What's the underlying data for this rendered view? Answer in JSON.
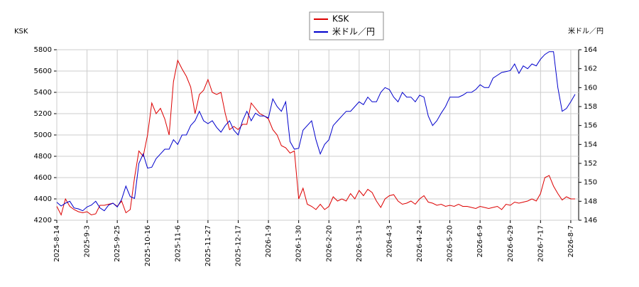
{
  "chart_data": {
    "type": "line",
    "y_label": "KSK",
    "y2_label": "米ドル／円",
    "categories": [
      "2025-8-14",
      null,
      null,
      null,
      null,
      null,
      null,
      "2025-9-3",
      null,
      null,
      null,
      null,
      null,
      null,
      "2025-9-25",
      null,
      null,
      null,
      null,
      null,
      null,
      "2025-10-16",
      null,
      null,
      null,
      null,
      null,
      null,
      "2025-11-6",
      null,
      null,
      null,
      null,
      null,
      null,
      "2025-11-27",
      null,
      null,
      null,
      null,
      null,
      null,
      "2025-12-17",
      null,
      null,
      null,
      null,
      null,
      null,
      "2026-1-9",
      null,
      null,
      null,
      null,
      null,
      null,
      "2026-1-30",
      null,
      null,
      null,
      null,
      null,
      null,
      "2026-2-20",
      null,
      null,
      null,
      null,
      null,
      null,
      "2026-3-13",
      null,
      null,
      null,
      null,
      null,
      null,
      "2026-4-3",
      null,
      null,
      null,
      null,
      null,
      null,
      "2026-4-24",
      null,
      null,
      null,
      null,
      null,
      null,
      "2026-5-20",
      null,
      null,
      null,
      null,
      null,
      null,
      "2026-6-9",
      null,
      null,
      null,
      null,
      null,
      null,
      "2026-6-29",
      null,
      null,
      null,
      null,
      null,
      null,
      "2026-7-17",
      null,
      null,
      null,
      null,
      null,
      null,
      "2026-8-7",
      null
    ],
    "series": [
      {
        "name": "KSK",
        "color": "#dd0000",
        "values": [
          4330,
          4250,
          4400,
          4330,
          4300,
          4280,
          4270,
          4280,
          4250,
          4260,
          4340,
          4340,
          4350,
          4360,
          4330,
          4380,
          4270,
          4300,
          4600,
          4850,
          4800,
          5000,
          5300,
          5200,
          5250,
          5150,
          5000,
          5500,
          5700,
          5620,
          5550,
          5450,
          5200,
          5380,
          5420,
          5520,
          5400,
          5380,
          5400,
          5200,
          5050,
          5080,
          5050,
          5100,
          5100,
          5300,
          5250,
          5200,
          5180,
          5150,
          5050,
          5000,
          4900,
          4880,
          4830,
          4850,
          4400,
          4500,
          4350,
          4330,
          4300,
          4350,
          4300,
          4330,
          4420,
          4380,
          4400,
          4380,
          4450,
          4400,
          4480,
          4430,
          4490,
          4460,
          4380,
          4320,
          4400,
          4430,
          4440,
          4380,
          4350,
          4360,
          4380,
          4350,
          4400,
          4430,
          4370,
          4360,
          4340,
          4350,
          4330,
          4340,
          4330,
          4350,
          4330,
          4330,
          4320,
          4310,
          4330,
          4320,
          4310,
          4320,
          4330,
          4300,
          4350,
          4340,
          4370,
          4360,
          4370,
          4380,
          4400,
          4380,
          4450,
          4600,
          4620,
          4520,
          4450,
          4390,
          4420,
          4400,
          4400
        ]
      },
      {
        "name": "米ドル／円",
        "color": "#0000cc",
        "axis": "y2",
        "values": [
          147.9,
          147.5,
          147.8,
          148.0,
          147.3,
          147.2,
          147.0,
          147.4,
          147.6,
          148.0,
          147.3,
          147.0,
          147.6,
          147.8,
          147.4,
          148.2,
          149.6,
          148.5,
          148.3,
          152.0,
          153.0,
          151.5,
          151.6,
          152.5,
          153.0,
          153.5,
          153.5,
          154.5,
          154.0,
          155.0,
          155.0,
          156.0,
          156.5,
          157.5,
          156.5,
          156.2,
          156.5,
          155.8,
          155.3,
          156.0,
          156.5,
          155.5,
          155.0,
          156.5,
          157.5,
          156.5,
          157.3,
          157.0,
          157.0,
          156.8,
          158.8,
          158.0,
          157.5,
          158.5,
          154.3,
          153.5,
          153.6,
          155.5,
          156.0,
          156.5,
          154.5,
          153.0,
          154.0,
          154.5,
          156.0,
          156.5,
          157.0,
          157.5,
          157.5,
          158.0,
          158.5,
          158.2,
          159.0,
          158.5,
          158.5,
          159.5,
          160.0,
          159.8,
          159.0,
          158.5,
          159.5,
          159.0,
          159.0,
          158.5,
          159.2,
          159.0,
          157.0,
          156.0,
          156.5,
          157.3,
          158.0,
          159.0,
          159.0,
          159.0,
          159.2,
          159.5,
          159.5,
          159.8,
          160.3,
          160.0,
          160.0,
          161.0,
          161.3,
          161.6,
          161.7,
          161.8,
          162.5,
          161.5,
          162.3,
          162.0,
          162.5,
          162.3,
          163.0,
          163.5,
          163.8,
          163.8,
          160.0,
          157.5,
          157.8,
          158.5,
          159.3
        ]
      }
    ],
    "ylim": [
      4200,
      5800
    ],
    "yticks": [
      4200,
      4400,
      4600,
      4800,
      5000,
      5200,
      5400,
      5600,
      5800
    ],
    "y2lim": [
      146,
      164
    ],
    "y2ticks": [
      146,
      148,
      150,
      152,
      154,
      156,
      158,
      160,
      162,
      164
    ],
    "grid": true,
    "legend": "top"
  }
}
